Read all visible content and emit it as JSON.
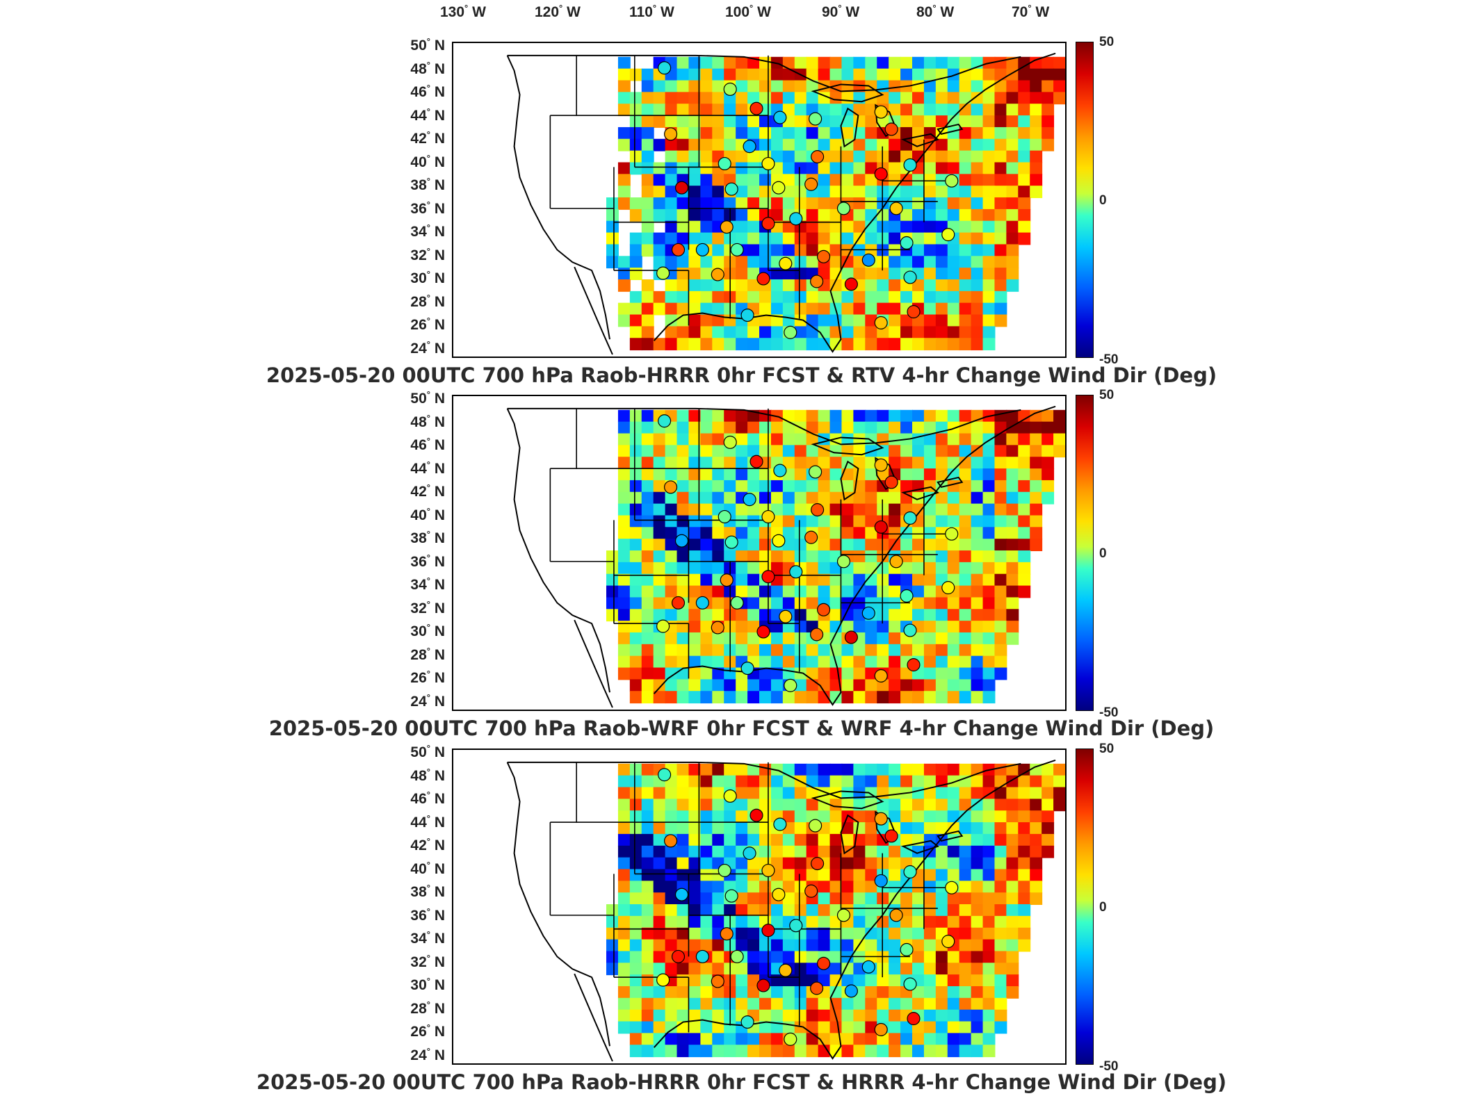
{
  "lon_labels": [
    {
      "deg": "130",
      "dir": "W"
    },
    {
      "deg": "120",
      "dir": "W"
    },
    {
      "deg": "110",
      "dir": "W"
    },
    {
      "deg": "100",
      "dir": "W"
    },
    {
      "deg": "90",
      "dir": "W"
    },
    {
      "deg": "80",
      "dir": "W"
    },
    {
      "deg": "70",
      "dir": "W"
    }
  ],
  "lat_labels": [
    {
      "deg": "50",
      "dir": "N"
    },
    {
      "deg": "48",
      "dir": "N"
    },
    {
      "deg": "46",
      "dir": "N"
    },
    {
      "deg": "44",
      "dir": "N"
    },
    {
      "deg": "42",
      "dir": "N"
    },
    {
      "deg": "40",
      "dir": "N"
    },
    {
      "deg": "38",
      "dir": "N"
    },
    {
      "deg": "36",
      "dir": "N"
    },
    {
      "deg": "34",
      "dir": "N"
    },
    {
      "deg": "32",
      "dir": "N"
    },
    {
      "deg": "30",
      "dir": "N"
    },
    {
      "deg": "28",
      "dir": "N"
    },
    {
      "deg": "26",
      "dir": "N"
    },
    {
      "deg": "24",
      "dir": "N"
    }
  ],
  "degree_symbol": "°",
  "colorbar": {
    "max": "50",
    "mid": "0",
    "min": "-50"
  },
  "colors": {
    "colormap": [
      "#00007f",
      "#0000ff",
      "#00bfff",
      "#40ffbf",
      "#ffff00",
      "#ff8000",
      "#ff0000",
      "#7f0000"
    ],
    "border_lines": "#000000",
    "missing": "#ffffff"
  },
  "panels": [
    {
      "title": "2025-05-20 00UTC 700 hPa Raob-HRRR 0hr FCST & RTV 4-hr Change Wind Dir (Deg)"
    },
    {
      "title": "2025-05-20 00UTC 700 hPa Raob-WRF 0hr FCST & WRF 4-hr Change Wind Dir (Deg)"
    },
    {
      "title": "2025-05-20 00UTC 700 hPa Raob-HRRR 0hr FCST & HRRR 4-hr Change Wind Dir (Deg)"
    }
  ]
}
